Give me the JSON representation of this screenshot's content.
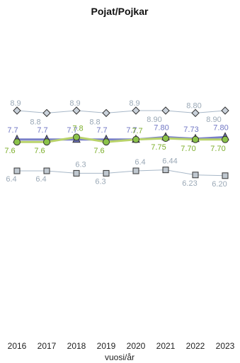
{
  "chart_data": {
    "type": "line",
    "title": "Pojat/Pojkar",
    "xlabel": "vuosi/år",
    "ylabel": "",
    "x": [
      "2016",
      "2017",
      "2018",
      "2019",
      "2020",
      "2021",
      "2022",
      "2023"
    ],
    "ylim": [
      0,
      10
    ],
    "grid": false,
    "legend": "none",
    "series": [
      {
        "marker": "diamond",
        "color": "#a8b8c8",
        "marker_fill": "#c9d1da",
        "values": [
          8.9,
          8.8,
          8.9,
          8.8,
          8.9,
          8.9,
          8.8,
          8.9
        ],
        "labels": [
          "8.9",
          "8.8",
          "8.9",
          "8.8",
          "8.9",
          "8.90",
          "8.80",
          "8.90"
        ],
        "label_color": "#9aa8b6"
      },
      {
        "marker": "triangle",
        "color": "#7a80c8",
        "marker_fill": "#6a70b8",
        "values": [
          7.7,
          7.7,
          7.7,
          7.7,
          7.7,
          7.8,
          7.73,
          7.8
        ],
        "labels": [
          "7.7",
          "7.7",
          "7.7",
          "7.7",
          "7.7",
          "7.80",
          "7.73",
          "7.80"
        ],
        "label_color": "#6f76c4"
      },
      {
        "marker": "circle",
        "color": "#b9d36a",
        "marker_fill": "#8bc34a",
        "values": [
          7.6,
          7.6,
          7.8,
          7.6,
          7.7,
          7.75,
          7.7,
          7.7
        ],
        "labels": [
          "7.6",
          "7.6",
          "7.8",
          "7.6",
          "7.7",
          "7.75",
          "7.70",
          "7.70"
        ],
        "label_color": "#7cae2a"
      },
      {
        "marker": "square",
        "color": "#a8b8c8",
        "marker_fill": "#c0c8d0",
        "values": [
          6.4,
          6.4,
          6.3,
          6.3,
          6.4,
          6.44,
          6.23,
          6.2
        ],
        "labels": [
          "6.4",
          "6.4",
          "6.3",
          "6.3",
          "6.4",
          "6.44",
          "6.23",
          "6.20"
        ],
        "label_color": "#9aa8b6"
      }
    ]
  }
}
